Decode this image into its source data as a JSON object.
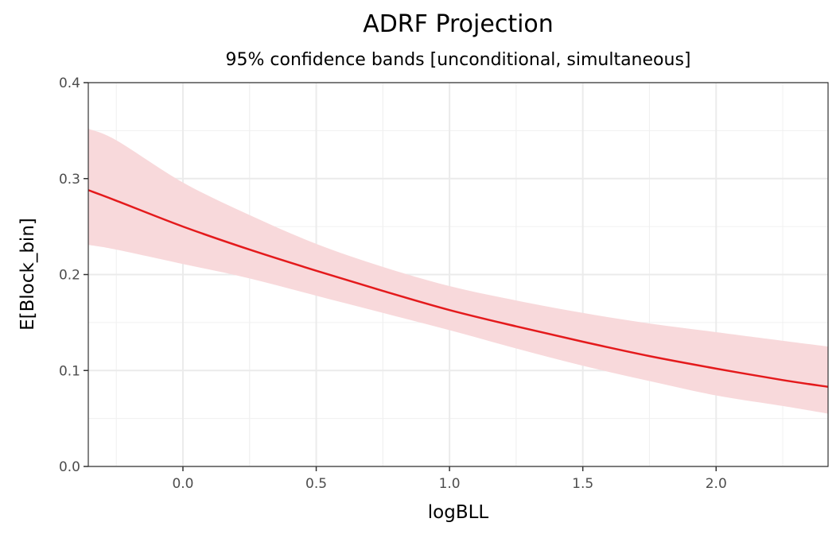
{
  "chart_data": {
    "type": "line",
    "title": "ADRF Projection",
    "subtitle": "95% confidence bands [unconditional, simultaneous]",
    "xlabel": "logBLL",
    "ylabel": "E[Block_bin]",
    "xlim": [
      -0.355,
      2.42
    ],
    "ylim": [
      0.0,
      0.4
    ],
    "xticks": [
      0.0,
      0.5,
      1.0,
      1.5,
      2.0
    ],
    "xtick_labels": [
      "0.0",
      "0.5",
      "1.0",
      "1.5",
      "2.0"
    ],
    "yticks": [
      0.0,
      0.1,
      0.2,
      0.3,
      0.4
    ],
    "ytick_labels": [
      "0.0",
      "0.1",
      "0.2",
      "0.3",
      "0.4"
    ],
    "grid": true,
    "line_color": "#e41a1c",
    "band_color": "#f8d9db",
    "x": [
      -0.355,
      -0.25,
      0.0,
      0.25,
      0.5,
      0.75,
      1.0,
      1.25,
      1.5,
      1.75,
      2.0,
      2.25,
      2.42
    ],
    "series": [
      {
        "name": "estimate",
        "values": [
          0.288,
          0.277,
          0.25,
          0.226,
          0.204,
          0.183,
          0.163,
          0.146,
          0.13,
          0.115,
          0.102,
          0.09,
          0.083
        ]
      },
      {
        "name": "upper",
        "values": [
          0.352,
          0.34,
          0.296,
          0.262,
          0.232,
          0.208,
          0.188,
          0.173,
          0.16,
          0.149,
          0.14,
          0.131,
          0.125
        ]
      },
      {
        "name": "lower",
        "values": [
          0.231,
          0.226,
          0.211,
          0.196,
          0.178,
          0.16,
          0.142,
          0.123,
          0.105,
          0.089,
          0.074,
          0.063,
          0.055
        ]
      }
    ]
  }
}
